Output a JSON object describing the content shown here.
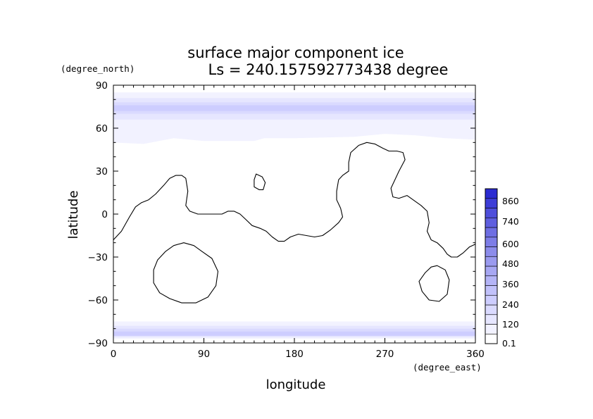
{
  "chart_data": {
    "type": "contour-map",
    "title_line1": "surface major component ice",
    "title_line2": "Ls = 240.157592773438 degree",
    "xlabel": "longitude",
    "ylabel": "latitude",
    "xunit": "(degree_east)",
    "yunit": "(degree_north)",
    "xlim": [
      0,
      360
    ],
    "ylim": [
      -90,
      90
    ],
    "xticks": [
      "0",
      "90",
      "180",
      "270",
      "360"
    ],
    "yticks": [
      "90",
      "60",
      "30",
      "0",
      "−30",
      "−60",
      "−90"
    ],
    "colorbar": {
      "labels": [
        "0.1",
        "120",
        "240",
        "360",
        "480",
        "600",
        "740",
        "860"
      ],
      "levels": [
        0.1,
        60,
        120,
        180,
        240,
        300,
        360,
        420,
        480,
        540,
        600,
        670,
        740,
        800,
        860,
        920
      ],
      "colors": [
        "#ffffff",
        "#f2f2ff",
        "#e6e6ff",
        "#dadaff",
        "#cdcdff",
        "#c1c1fb",
        "#b4b4f7",
        "#a7a7f3",
        "#9a9aef",
        "#8c8ceb",
        "#7d7de7",
        "#6e6ee3",
        "#5e5edf",
        "#4e4edb",
        "#3d3dd7",
        "#2b2bd1"
      ]
    },
    "north_cap": {
      "bands": [
        {
          "level": 60,
          "lat_min_by_lon": [
            [
              0,
              50
            ],
            [
              30,
              49
            ],
            [
              60,
              53
            ],
            [
              90,
              51
            ],
            [
              120,
              51
            ],
            [
              140,
              51
            ],
            [
              150,
              53
            ],
            [
              180,
              53
            ],
            [
              240,
              54
            ],
            [
              270,
              56
            ],
            [
              300,
              55
            ],
            [
              330,
              53
            ],
            [
              360,
              52
            ]
          ],
          "lat_max": 85
        },
        {
          "level": 120,
          "lat_min": 66,
          "lat_max": 81
        },
        {
          "level": 180,
          "lat_min": 70,
          "lat_max": 78
        },
        {
          "level": 240,
          "lat_min": 72,
          "lat_max": 76
        }
      ]
    },
    "south_cap": {
      "bands": [
        {
          "level": 60,
          "lat_min": -87,
          "lat_max": -75
        },
        {
          "level": 120,
          "lat_min": -86,
          "lat_max": -78
        },
        {
          "level": 180,
          "lat_min": -85,
          "lat_max": -80
        },
        {
          "level": 240,
          "lat_min": -85,
          "lat_max": -82
        }
      ]
    },
    "topography_contours": [
      {
        "name": "",
        "closed": false,
        "points": [
          [
            0,
            -18
          ],
          [
            8,
            -12
          ],
          [
            16,
            -2
          ],
          [
            22,
            5
          ],
          [
            28,
            8
          ],
          [
            35,
            10
          ],
          [
            42,
            14
          ],
          [
            50,
            20
          ],
          [
            56,
            25
          ],
          [
            62,
            27
          ],
          [
            68,
            27
          ],
          [
            72,
            25
          ],
          [
            74,
            16
          ],
          [
            72,
            6
          ],
          [
            76,
            2
          ],
          [
            84,
            0
          ],
          [
            96,
            0
          ],
          [
            108,
            0
          ],
          [
            114,
            2
          ],
          [
            120,
            2
          ],
          [
            126,
            0
          ],
          [
            132,
            -4
          ],
          [
            138,
            -8
          ],
          [
            146,
            -10
          ],
          [
            152,
            -12
          ],
          [
            158,
            -16
          ],
          [
            164,
            -19
          ],
          [
            170,
            -19
          ],
          [
            176,
            -16
          ],
          [
            184,
            -14
          ],
          [
            192,
            -15
          ],
          [
            200,
            -16
          ],
          [
            208,
            -15
          ],
          [
            216,
            -11
          ],
          [
            224,
            -6
          ],
          [
            228,
            -2
          ],
          [
            226,
            4
          ],
          [
            222,
            10
          ],
          [
            222,
            16
          ],
          [
            224,
            24
          ],
          [
            228,
            27
          ],
          [
            234,
            30
          ],
          [
            234,
            36
          ],
          [
            236,
            43
          ],
          [
            244,
            48
          ],
          [
            252,
            50
          ],
          [
            260,
            49
          ],
          [
            268,
            46
          ],
          [
            274,
            44
          ],
          [
            282,
            44
          ],
          [
            288,
            43
          ],
          [
            290,
            38
          ],
          [
            284,
            30
          ],
          [
            276,
            18
          ],
          [
            278,
            12
          ],
          [
            284,
            11
          ],
          [
            292,
            13
          ],
          [
            298,
            10
          ],
          [
            306,
            6
          ],
          [
            312,
            2
          ],
          [
            314,
            -6
          ],
          [
            312,
            -12
          ],
          [
            316,
            -18
          ],
          [
            322,
            -20
          ],
          [
            328,
            -24
          ],
          [
            332,
            -28
          ],
          [
            336,
            -30
          ],
          [
            342,
            -30
          ],
          [
            348,
            -27
          ],
          [
            354,
            -23
          ],
          [
            360,
            -21
          ]
        ]
      },
      {
        "name": "",
        "closed": true,
        "points": [
          [
            70,
            -20
          ],
          [
            80,
            -22
          ],
          [
            88,
            -26
          ],
          [
            98,
            -31
          ],
          [
            104,
            -40
          ],
          [
            102,
            -50
          ],
          [
            94,
            -58
          ],
          [
            82,
            -62
          ],
          [
            68,
            -62
          ],
          [
            56,
            -59
          ],
          [
            46,
            -55
          ],
          [
            40,
            -48
          ],
          [
            40,
            -39
          ],
          [
            44,
            -32
          ],
          [
            52,
            -26
          ],
          [
            60,
            -22
          ]
        ]
      },
      {
        "name": "",
        "closed": true,
        "points": [
          [
            142,
            28
          ],
          [
            148,
            26
          ],
          [
            151,
            22
          ],
          [
            149,
            17
          ],
          [
            145,
            17
          ],
          [
            140,
            19
          ],
          [
            140,
            24
          ]
        ]
      },
      {
        "name": "",
        "closed": true,
        "points": [
          [
            322,
            -36
          ],
          [
            330,
            -39
          ],
          [
            334,
            -46
          ],
          [
            332,
            -56
          ],
          [
            324,
            -61
          ],
          [
            314,
            -60
          ],
          [
            307,
            -54
          ],
          [
            304,
            -47
          ],
          [
            310,
            -41
          ],
          [
            316,
            -37
          ]
        ]
      }
    ]
  }
}
